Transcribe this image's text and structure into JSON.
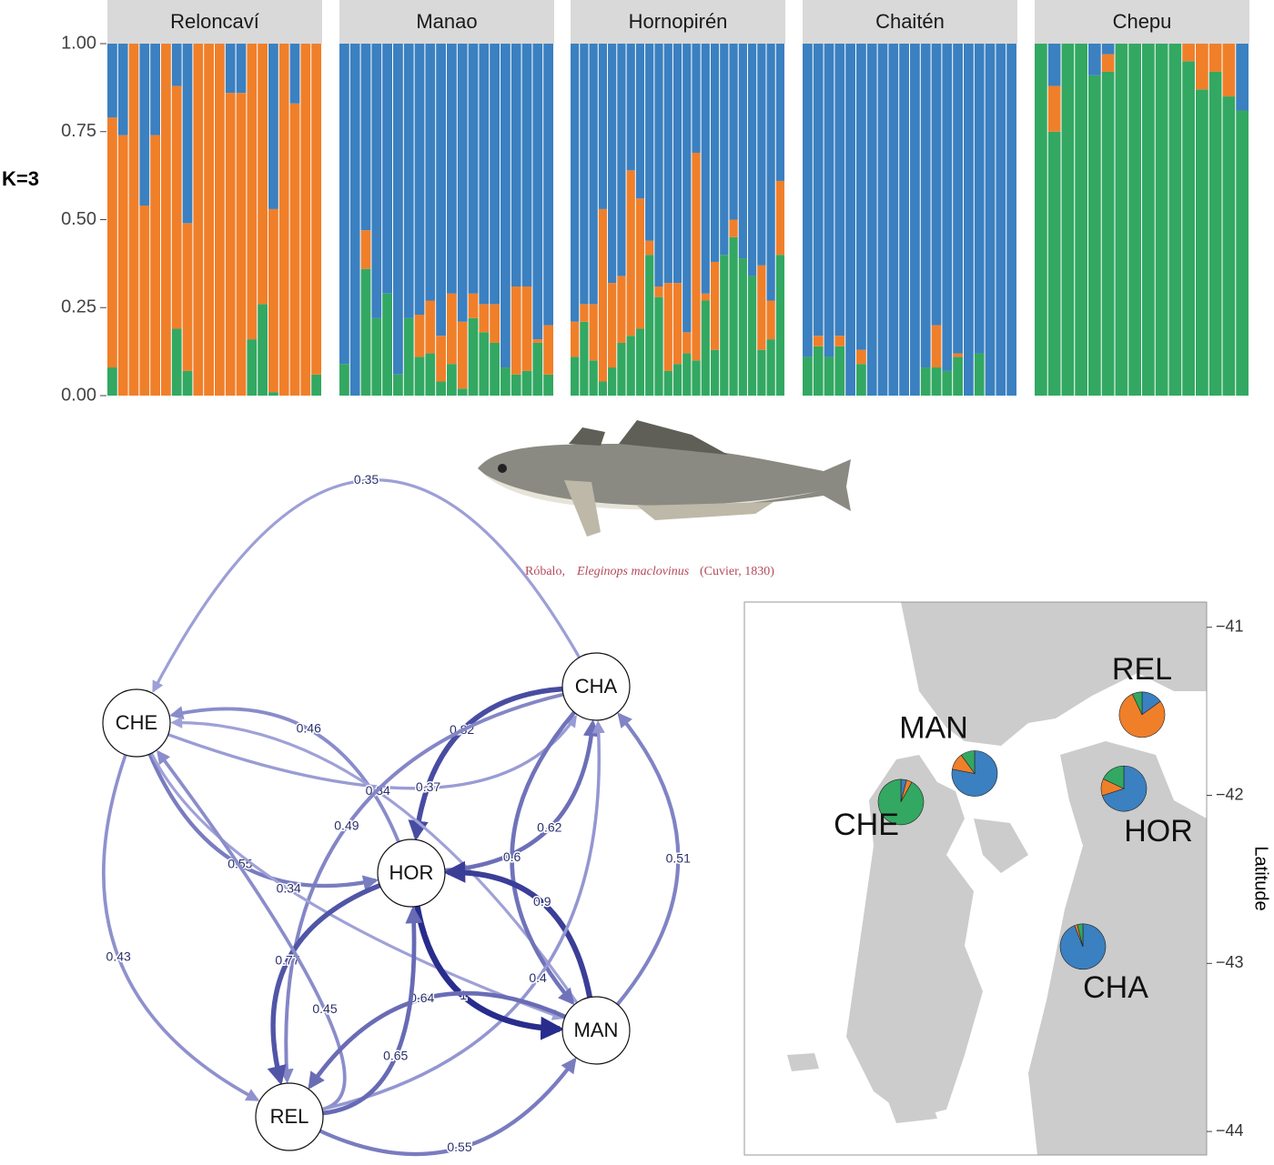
{
  "chart_data": [
    {
      "type": "structure",
      "y_label": "K=3",
      "colors": [
        "#33a862",
        "#f07f2a",
        "#3b80c0"
      ],
      "ylim": [
        0,
        1
      ],
      "yticks": [
        {
          "value": 0,
          "label": "0.00"
        },
        {
          "value": 0.25,
          "label": "0.25"
        },
        {
          "value": 0.5,
          "label": "0.50"
        },
        {
          "value": 0.75,
          "label": "0.75"
        },
        {
          "value": 1,
          "label": "1.00"
        }
      ],
      "panels": [
        {
          "title": "Reloncaví",
          "cluster_values": [
            [
              0.08,
              0,
              0,
              0,
              0,
              0,
              0.19,
              0.07,
              0,
              0,
              0,
              0,
              0,
              0.16,
              0.26,
              0.01,
              0,
              0,
              0,
              0.06
            ],
            [
              0.71,
              0.74,
              1,
              0.54,
              0.74,
              1,
              0.69,
              0.42,
              1,
              1,
              1,
              0.86,
              0.86,
              0.84,
              0.74,
              0.52,
              1,
              0.83,
              1,
              0.94
            ],
            [
              0.21,
              0.26,
              0,
              0.46,
              0.26,
              0,
              0.12,
              0.51,
              0,
              0,
              0,
              0.14,
              0.14,
              0,
              0,
              0.47,
              0,
              0.17,
              0,
              0
            ]
          ]
        },
        {
          "title": "Manao",
          "cluster_values": [
            [
              0.09,
              0,
              0.36,
              0.22,
              0.29,
              0.06,
              0.22,
              0.11,
              0.12,
              0.04,
              0.09,
              0.02,
              0.22,
              0.18,
              0.15,
              0.08,
              0.06,
              0.07,
              0.15,
              0.06
            ],
            [
              0,
              0,
              0.11,
              0,
              0,
              0,
              0,
              0.12,
              0.15,
              0.13,
              0.2,
              0.19,
              0.07,
              0.08,
              0.11,
              0,
              0.25,
              0.24,
              0.01,
              0.14
            ],
            [
              0.91,
              1,
              0.53,
              0.78,
              0.71,
              0.94,
              0.78,
              0.77,
              0.73,
              0.83,
              0.71,
              0.79,
              0.71,
              0.74,
              0.74,
              0.92,
              0.69,
              0.69,
              0.84,
              0.8
            ]
          ]
        },
        {
          "title": "Hornopirén",
          "cluster_values": [
            [
              0.11,
              0.21,
              0.1,
              0.04,
              0.08,
              0.15,
              0.17,
              0.19,
              0.4,
              0.28,
              0.07,
              0.09,
              0.12,
              0.1,
              0.27,
              0.13,
              0.4,
              0.45,
              0.39,
              0.34,
              0.13,
              0.16,
              0.4
            ],
            [
              0.1,
              0.05,
              0.16,
              0.49,
              0.24,
              0.19,
              0.47,
              0.37,
              0.04,
              0.03,
              0.25,
              0.23,
              0.06,
              0.59,
              0.02,
              0.25,
              0,
              0.05,
              0,
              0,
              0.24,
              0.11,
              0.21
            ],
            [
              0.79,
              0.74,
              0.74,
              0.47,
              0.68,
              0.66,
              0.36,
              0.44,
              0.56,
              0.69,
              0.68,
              0.68,
              0.82,
              0.31,
              0.71,
              0.62,
              0.6,
              0.5,
              0.61,
              0.66,
              0.63,
              0.73,
              0.39
            ]
          ]
        },
        {
          "title": "Chaitén",
          "cluster_values": [
            [
              0.11,
              0.14,
              0.11,
              0.14,
              0,
              0.09,
              0,
              0,
              0,
              0,
              0,
              0.08,
              0.08,
              0.07,
              0.11,
              0,
              0.12,
              0,
              0,
              0
            ],
            [
              0,
              0.03,
              0,
              0.03,
              0,
              0.04,
              0,
              0,
              0,
              0,
              0,
              0,
              0.12,
              0,
              0.01,
              0,
              0,
              0,
              0,
              0
            ],
            [
              0.89,
              0.83,
              0.89,
              0.83,
              1,
              0.87,
              1,
              1,
              1,
              1,
              1,
              0.92,
              0.8,
              0.93,
              0.88,
              1,
              0.88,
              1,
              1,
              1
            ]
          ]
        },
        {
          "title": "Chepu",
          "cluster_values": [
            [
              1,
              0.75,
              1,
              1,
              0.91,
              0.92,
              1,
              1,
              1,
              1,
              1,
              0.95,
              0.87,
              0.92,
              0.85,
              0.81
            ],
            [
              0,
              0.13,
              0,
              0,
              0,
              0.05,
              0,
              0,
              0,
              0,
              0,
              0.05,
              0.13,
              0.08,
              0.15,
              0
            ],
            [
              0,
              0.12,
              0,
              0,
              0.09,
              0.03,
              0,
              0,
              0,
              0,
              0,
              0,
              0,
              0,
              0,
              0.19
            ]
          ]
        }
      ]
    },
    {
      "type": "network",
      "nodes": [
        "CHE",
        "CHA",
        "HOR",
        "MAN",
        "REL"
      ],
      "edges": [
        {
          "from": 1,
          "to": 0,
          "weight": 0.35
        },
        {
          "from": 2,
          "to": 0,
          "weight": 0.46
        },
        {
          "from": 1,
          "to": 2,
          "weight": 0.82
        },
        {
          "from": 0,
          "to": 1,
          "weight": 0.37
        },
        {
          "from": 3,
          "to": 0,
          "weight": 0.34
        },
        {
          "from": 1,
          "to": 4,
          "weight": 0.49
        },
        {
          "from": 2,
          "to": 1,
          "weight": 0.62
        },
        {
          "from": 0,
          "to": 2,
          "weight": 0.55
        },
        {
          "from": 0,
          "to": 3,
          "weight": 0.34
        },
        {
          "from": 1,
          "to": 3,
          "weight": 0.6
        },
        {
          "from": 3,
          "to": 1,
          "weight": 0.51
        },
        {
          "from": 3,
          "to": 2,
          "weight": 0.9
        },
        {
          "from": 2,
          "to": 4,
          "weight": 0.77
        },
        {
          "from": 0,
          "to": 4,
          "weight": 0.43
        },
        {
          "from": 4,
          "to": 0,
          "weight": 0.45
        },
        {
          "from": 4,
          "to": 1,
          "weight": 0.4
        },
        {
          "from": 2,
          "to": 3,
          "weight": 1
        },
        {
          "from": 3,
          "to": 4,
          "weight": 0.64
        },
        {
          "from": 4,
          "to": 2,
          "weight": 0.65
        },
        {
          "from": 4,
          "to": 3,
          "weight": 0.55
        }
      ]
    },
    {
      "type": "map-pies",
      "y_label": "Latitude",
      "ylim": [
        -44.14,
        -40.85
      ],
      "yticks": [
        {
          "value": -41,
          "label": "−41"
        },
        {
          "value": -42,
          "label": "−42"
        },
        {
          "value": -43,
          "label": "−43"
        },
        {
          "value": -44,
          "label": "−44"
        }
      ],
      "colors": [
        "#3b80c0",
        "#f07f2a",
        "#33a862"
      ],
      "sites": [
        {
          "label": "REL",
          "lat": -41.52,
          "values": [
            0.15,
            0.78,
            0.07
          ]
        },
        {
          "label": "MAN",
          "lat": -41.87,
          "values": [
            0.78,
            0.12,
            0.1
          ]
        },
        {
          "label": "CHE",
          "lat": -42.04,
          "values": [
            0.04,
            0.04,
            0.92
          ]
        },
        {
          "label": "HOR",
          "lat": -41.96,
          "values": [
            0.7,
            0.12,
            0.18
          ]
        },
        {
          "label": "CHA",
          "lat": -42.9,
          "values": [
            0.94,
            0.02,
            0.04
          ]
        }
      ]
    }
  ],
  "caption": {
    "common_name": "Róbalo,",
    "species": "Eleginops maclovinus",
    "authority": "(Cuvier, 1830)"
  }
}
